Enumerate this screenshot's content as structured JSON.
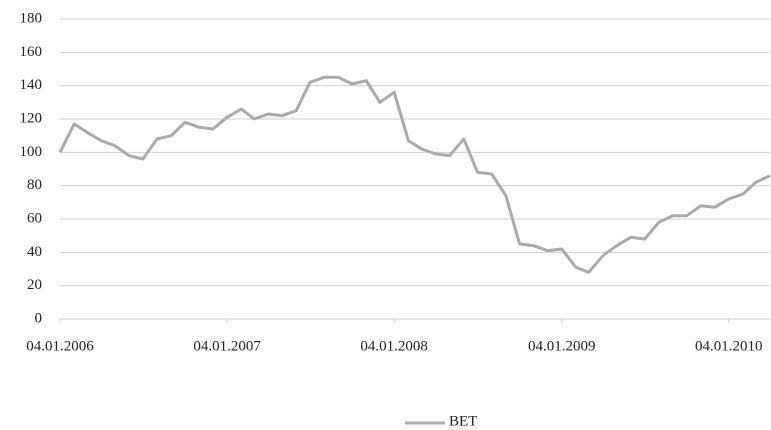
{
  "chart_data": {
    "type": "line",
    "x": [
      "04.01.2006",
      "04.02.2006",
      "04.03.2006",
      "04.04.2006",
      "04.05.2006",
      "04.06.2006",
      "04.07.2006",
      "04.08.2006",
      "04.09.2006",
      "04.10.2006",
      "04.11.2006",
      "04.12.2006",
      "04.01.2007",
      "04.02.2007",
      "04.03.2007",
      "04.04.2007",
      "04.05.2007",
      "04.06.2007",
      "04.07.2007",
      "04.08.2007",
      "04.09.2007",
      "04.10.2007",
      "04.11.2007",
      "04.12.2007",
      "04.01.2008",
      "04.02.2008",
      "04.03.2008",
      "04.04.2008",
      "04.05.2008",
      "04.06.2008",
      "04.07.2008",
      "04.08.2008",
      "04.09.2008",
      "04.10.2008",
      "04.11.2008",
      "04.12.2008",
      "04.01.2009",
      "04.02.2009",
      "04.03.2009",
      "04.04.2009",
      "04.05.2009",
      "04.06.2009",
      "04.07.2009",
      "04.08.2009",
      "04.09.2009",
      "04.10.2009",
      "04.11.2009",
      "04.12.2009",
      "04.01.2010",
      "04.02.2010",
      "04.03.2010",
      "04.04.2010"
    ],
    "series": [
      {
        "name": "BET",
        "color": "#aaaaaa",
        "values": [
          100,
          117,
          112,
          107,
          104,
          98,
          96,
          108,
          110,
          118,
          115,
          114,
          121,
          126,
          120,
          123,
          122,
          125,
          142,
          145,
          145,
          141,
          143,
          130,
          136,
          107,
          102,
          99,
          98,
          108,
          88,
          87,
          74,
          45,
          44,
          41,
          42,
          31,
          28,
          38,
          44,
          49,
          48,
          58,
          62,
          62,
          68,
          67,
          72,
          75,
          82,
          86
        ]
      }
    ],
    "xlim": [
      "04.01.2006",
      "04.04.2010"
    ],
    "xticks": [
      "04.01.2006",
      "04.01.2007",
      "04.01.2008",
      "04.01.2009",
      "04.01.2010"
    ],
    "ylim": [
      0,
      180
    ],
    "yticks": [
      0,
      20,
      40,
      60,
      80,
      100,
      120,
      140,
      160,
      180
    ],
    "grid": true,
    "legend": "bottom"
  }
}
